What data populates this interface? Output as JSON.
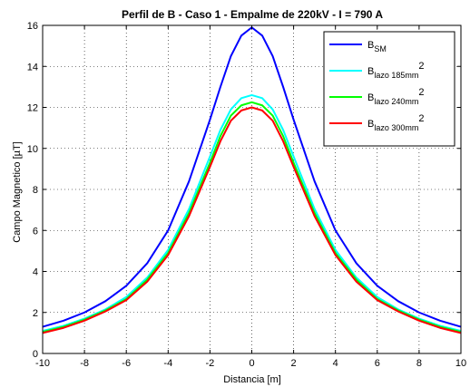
{
  "chart_data": {
    "type": "line",
    "title": "Perfil de B - Caso 1 - Empalme de 220kV - I = 790 A",
    "xlabel": "Distancia [m]",
    "ylabel": "Campo Magnetico [µT]",
    "xlim": [
      -10,
      10
    ],
    "ylim": [
      0,
      16
    ],
    "xticks": [
      -10,
      -8,
      -6,
      -4,
      -2,
      0,
      2,
      4,
      6,
      8,
      10
    ],
    "yticks": [
      0,
      2,
      4,
      6,
      8,
      10,
      12,
      14,
      16
    ],
    "grid": true,
    "legend_position": "top-right",
    "x": [
      -10,
      -9,
      -8,
      -7,
      -6,
      -5,
      -4,
      -3,
      -2,
      -1.5,
      -1,
      -0.5,
      0,
      0.5,
      1,
      1.5,
      2,
      3,
      4,
      5,
      6,
      7,
      8,
      9,
      10
    ],
    "series": [
      {
        "legend": {
          "base": "B",
          "sub": "SM",
          "sup": ""
        },
        "color": "#0000ff",
        "values": [
          1.3,
          1.6,
          2.0,
          2.55,
          3.3,
          4.4,
          6.0,
          8.4,
          11.4,
          13.0,
          14.5,
          15.5,
          15.9,
          15.5,
          14.5,
          13.0,
          11.4,
          8.4,
          6.0,
          4.4,
          3.3,
          2.55,
          2.0,
          1.6,
          1.3
        ]
      },
      {
        "legend": {
          "base": "B",
          "sub": "lazo 185mm",
          "sup": "2"
        },
        "color": "#00ffff",
        "values": [
          1.1,
          1.35,
          1.7,
          2.15,
          2.75,
          3.7,
          5.05,
          7.05,
          9.6,
          10.9,
          11.9,
          12.45,
          12.6,
          12.45,
          11.9,
          10.9,
          9.6,
          7.05,
          5.05,
          3.7,
          2.75,
          2.15,
          1.7,
          1.35,
          1.1
        ]
      },
      {
        "legend": {
          "base": "B",
          "sub": "lazo 240mm",
          "sup": "2"
        },
        "color": "#00ff00",
        "values": [
          1.05,
          1.3,
          1.65,
          2.1,
          2.65,
          3.6,
          4.9,
          6.85,
          9.3,
          10.6,
          11.6,
          12.1,
          12.25,
          12.1,
          11.6,
          10.6,
          9.3,
          6.85,
          4.9,
          3.6,
          2.65,
          2.1,
          1.65,
          1.3,
          1.05
        ]
      },
      {
        "legend": {
          "base": "B",
          "sub": "lazo 300mm",
          "sup": "2"
        },
        "color": "#ff0000",
        "values": [
          1.0,
          1.25,
          1.6,
          2.05,
          2.6,
          3.5,
          4.8,
          6.7,
          9.1,
          10.35,
          11.35,
          11.85,
          12.0,
          11.85,
          11.35,
          10.35,
          9.1,
          6.7,
          4.8,
          3.5,
          2.6,
          2.05,
          1.6,
          1.25,
          1.0
        ]
      }
    ]
  }
}
